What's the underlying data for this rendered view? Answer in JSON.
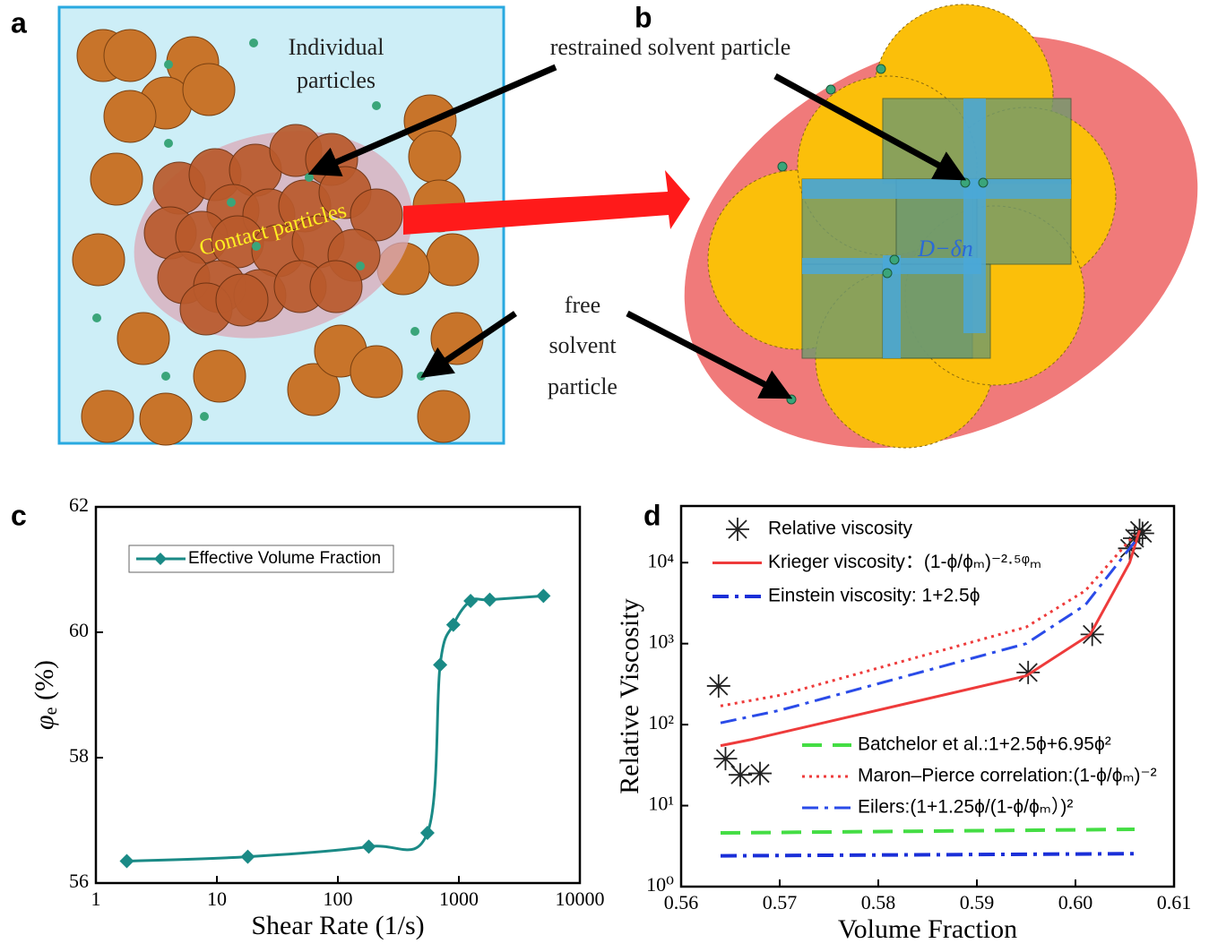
{
  "panel_labels": [
    "a",
    "b",
    "c",
    "d"
  ],
  "diagram_a": {
    "individual_label": [
      "Individual",
      "particles"
    ],
    "contact_label": "Contact particles"
  },
  "diagram_b": {
    "restrained_label": "restrained solvent particle",
    "free_label": [
      "free",
      "solvent",
      "particle"
    ],
    "gap_label": "D−δn"
  },
  "chart_data": [
    {
      "type": "line",
      "xlabel": "Shear Rate (1/s)",
      "ylabel": {
        "symbol": "φ",
        "subscript": "e",
        "unit": " (%)"
      },
      "xscale": "log",
      "xlim": [
        1,
        10000
      ],
      "xticks": [
        1,
        10,
        100,
        1000,
        10000
      ],
      "ylim": [
        56,
        62
      ],
      "yticks": [
        56,
        58,
        60,
        62
      ],
      "legend": "upper left",
      "series": [
        {
          "name": "Effective Volume Fraction",
          "color": "#1a8a86",
          "marker": "diamond",
          "x": [
            1.8,
            18,
            180,
            550,
            700,
            900,
            1250,
            1800,
            5000
          ],
          "values": [
            56.35,
            56.42,
            56.58,
            56.8,
            59.48,
            60.12,
            60.5,
            60.52,
            60.58
          ]
        }
      ]
    },
    {
      "type": "line",
      "xlabel": "Volume Fraction",
      "ylabel": "Relative Viscosity",
      "yscale": "log",
      "xlim": [
        0.56,
        0.61
      ],
      "xticks": [
        0.56,
        0.57,
        0.58,
        0.59,
        {
          "value": 0.6,
          "label": "0.60"
        },
        0.61
      ],
      "ylim": [
        1,
        50000
      ],
      "yticks": [
        {
          "value": 1,
          "label": "10⁰"
        },
        {
          "value": 10,
          "label": "10¹"
        },
        {
          "value": 100,
          "label": "10²"
        },
        {
          "value": 1000,
          "label": "10³"
        },
        {
          "value": 10000,
          "label": "10⁴"
        }
      ],
      "series": [
        {
          "name": "Relative viscosity",
          "color": "#222222",
          "style": "none",
          "marker": "star",
          "x": [
            0.5638,
            0.5645,
            0.566,
            0.568,
            0.5952,
            0.6017,
            0.6055,
            0.606,
            0.6065,
            0.6068
          ],
          "values": [
            300,
            38,
            24,
            25,
            440,
            1300,
            15000,
            20000,
            25000,
            23000
          ]
        },
        {
          "name": "Krieger viscosity：(1-ϕ/ϕₘ)⁻²·⁵ᵠₘ",
          "color": "#ee3b3b",
          "style": "solid",
          "width": 3,
          "x": [
            0.564,
            0.567,
            0.595,
            0.6015,
            0.6055,
            0.6065
          ],
          "values": [
            55,
            65,
            400,
            1300,
            10000,
            25000
          ]
        },
        {
          "name": "Einstein viscosity: 1+2.5ϕ",
          "color": "#1a2fd8",
          "style": "dashdot",
          "width": 4,
          "x": [
            0.564,
            0.606
          ],
          "values": [
            2.4,
            2.55
          ]
        },
        {
          "name": "Batchelor et al.:1+2.5ϕ+6.95ϕ²",
          "color": "#44dd44",
          "style": "dashed",
          "width": 4,
          "x": [
            0.564,
            0.606
          ],
          "values": [
            4.6,
            5.1
          ]
        },
        {
          "name": "Maron–Pierce correlation:(1-ϕ/ϕₘ)⁻²",
          "color": "#ee3b3b",
          "style": "dotted",
          "width": 3,
          "x": [
            0.564,
            0.57,
            0.595,
            0.601,
            0.606
          ],
          "values": [
            170,
            230,
            1600,
            4500,
            22000
          ]
        },
        {
          "name": "Eilers:(1+1.25ϕ/(1-ϕ/ϕₘ）)²",
          "color": "#2a4be8",
          "style": "dashdot",
          "width": 3,
          "x": [
            0.564,
            0.57,
            0.595,
            0.601,
            0.606
          ],
          "values": [
            105,
            150,
            1000,
            3000,
            18000
          ]
        }
      ]
    }
  ]
}
